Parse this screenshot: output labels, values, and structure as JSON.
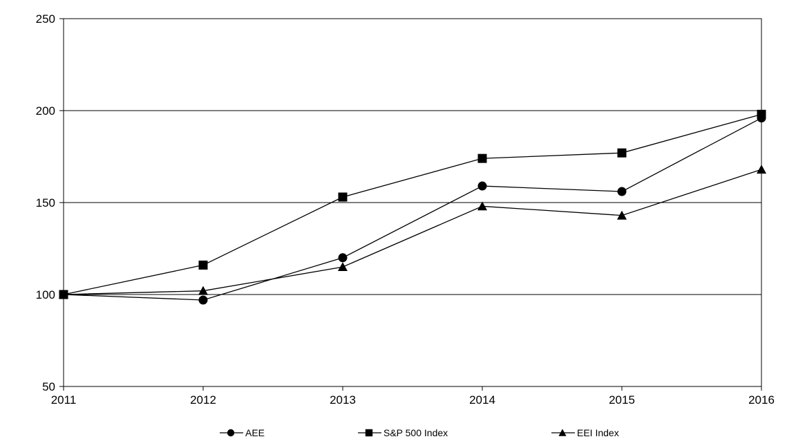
{
  "chart_data": {
    "type": "line",
    "title": "",
    "xlabel": "",
    "ylabel": "",
    "x": [
      "2011",
      "2012",
      "2013",
      "2014",
      "2015",
      "2016"
    ],
    "ylim": [
      50,
      250
    ],
    "yticks": [
      50,
      100,
      150,
      200,
      250
    ],
    "grid": "horizontal",
    "legend_position": "bottom",
    "series": [
      {
        "name": "AEE",
        "marker": "circle",
        "values": [
          100,
          97,
          120,
          159,
          156,
          196
        ]
      },
      {
        "name": "S&P 500 Index",
        "marker": "square",
        "values": [
          100,
          116,
          153,
          174,
          177,
          198
        ]
      },
      {
        "name": "EEI Index",
        "marker": "triangle",
        "values": [
          100,
          102,
          115,
          148,
          143,
          168
        ]
      }
    ],
    "colors": {
      "line": "#000000",
      "grid": "#000000",
      "background": "#ffffff"
    }
  }
}
